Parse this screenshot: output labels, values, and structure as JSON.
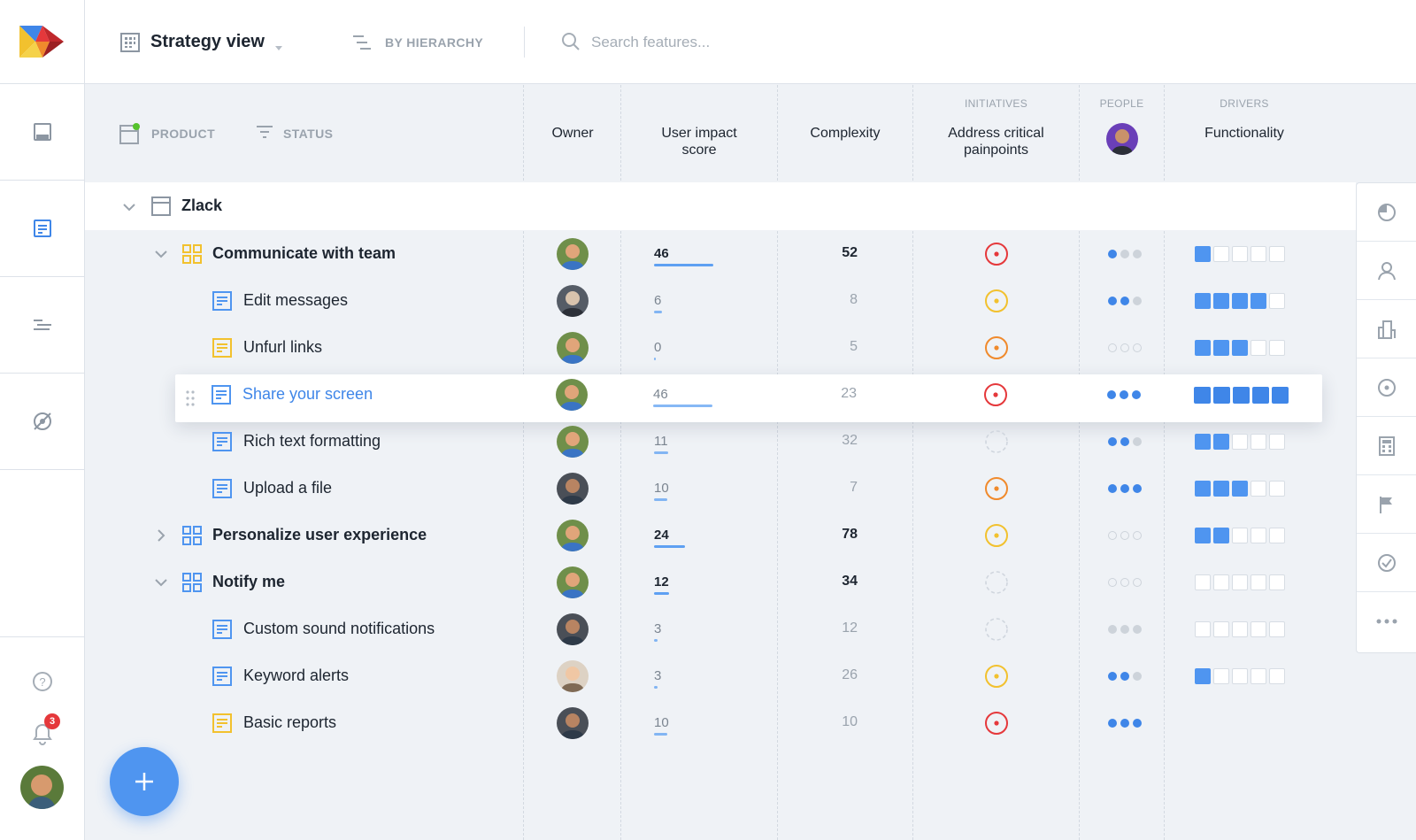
{
  "topbar": {
    "view_title": "Strategy view",
    "group_label": "BY HIERARCHY",
    "search_placeholder": "Search features..."
  },
  "filters": {
    "product_label": "PRODUCT",
    "status_label": "STATUS"
  },
  "columns": {
    "owner": "Owner",
    "user_impact_line1": "User impact",
    "user_impact_line2": "score",
    "complexity": "Complexity",
    "initiatives_group": "INITIATIVES",
    "initiative_line1": "Address critical",
    "initiative_line2": "painpoints",
    "people_group": "PEOPLE",
    "drivers_group": "DRIVERS",
    "driver": "Functionality"
  },
  "root": {
    "name": "Zlack"
  },
  "colors": {
    "accent": "#4f95f0",
    "red": "#e5383b",
    "orange": "#f08a2c",
    "yellow": "#f2c12e",
    "dot_dark": "#3f86e8",
    "dot_light": "#cdd3da"
  },
  "rows": [
    {
      "name": "Communicate with team",
      "level": 1,
      "type": "component-yellow",
      "chevron": "down",
      "avatar": "a",
      "score": "46",
      "score_fill": 46,
      "complexity": "52",
      "initiative": "red",
      "people": 1,
      "people_color": "#3f86e8",
      "drivers": 1
    },
    {
      "name": "Edit messages",
      "level": 2,
      "type": "feature-blue",
      "avatar": "b",
      "score": "6",
      "score_fill": 6,
      "complexity": "8",
      "initiative": "yellow",
      "people": 2,
      "people_color": "#3f86e8",
      "drivers": 4
    },
    {
      "name": "Unfurl links",
      "level": 2,
      "type": "feature-yellow",
      "avatar": "a",
      "score": "0",
      "score_fill": 0,
      "complexity": "5",
      "initiative": "orange",
      "people": 0,
      "people_color": "#3f86e8",
      "drivers": 3
    },
    {
      "name": "Share your screen",
      "level": 2,
      "type": "feature-blue",
      "highlight": true,
      "avatar": "a",
      "score": "46",
      "score_fill": 46,
      "complexity": "23",
      "initiative": "red",
      "people": 3,
      "people_color": "#3f86e8",
      "drivers": 5
    },
    {
      "name": "Rich text formatting",
      "level": 2,
      "type": "feature-blue",
      "avatar": "a",
      "score": "11",
      "score_fill": 11,
      "complexity": "32",
      "initiative": "empty",
      "people": 2,
      "people_color": "#3f86e8",
      "drivers": 2
    },
    {
      "name": "Upload a file",
      "level": 2,
      "type": "feature-blue",
      "avatar": "c",
      "score": "10",
      "score_fill": 10,
      "complexity": "7",
      "initiative": "orange",
      "people": 3,
      "people_color": "#3f86e8",
      "drivers": 3
    },
    {
      "name": "Personalize user experience",
      "level": 1,
      "type": "component-blue",
      "chevron": "right",
      "avatar": "a",
      "score": "24",
      "score_fill": 24,
      "complexity": "78",
      "initiative": "yellow",
      "people": 0,
      "people_color": "#3f86e8",
      "drivers": 2
    },
    {
      "name": "Notify me",
      "level": 1,
      "type": "component-blue",
      "chevron": "down",
      "avatar": "a",
      "score": "12",
      "score_fill": 12,
      "complexity": "34",
      "initiative": "empty",
      "people": 0,
      "people_color": "#3f86e8",
      "drivers": 0
    },
    {
      "name": "Custom sound notifications",
      "level": 2,
      "type": "feature-blue",
      "avatar": "c",
      "score": "3",
      "score_fill": 3,
      "complexity": "12",
      "initiative": "empty",
      "people": 3,
      "people_color": "#cdd3da",
      "drivers": 0
    },
    {
      "name": "Keyword alerts",
      "level": 2,
      "type": "feature-blue",
      "avatar": "d",
      "score": "3",
      "score_fill": 3,
      "complexity": "26",
      "initiative": "yellow",
      "people": 2,
      "people_color": "#3f86e8",
      "drivers": 1
    },
    {
      "name": "Basic reports",
      "level": 2,
      "type": "feature-yellow",
      "avatar": "c",
      "score": "10",
      "score_fill": 10,
      "complexity": "10",
      "initiative": "red",
      "people": 3,
      "people_color": "#3f86e8",
      "drivers": null
    }
  ],
  "notifications": {
    "count": "3"
  },
  "right_toolbar": [
    "pie-chart-icon",
    "person-icon",
    "building-icon",
    "target-icon",
    "calculator-icon",
    "flag-icon",
    "check-circle-icon",
    "more-icon"
  ]
}
